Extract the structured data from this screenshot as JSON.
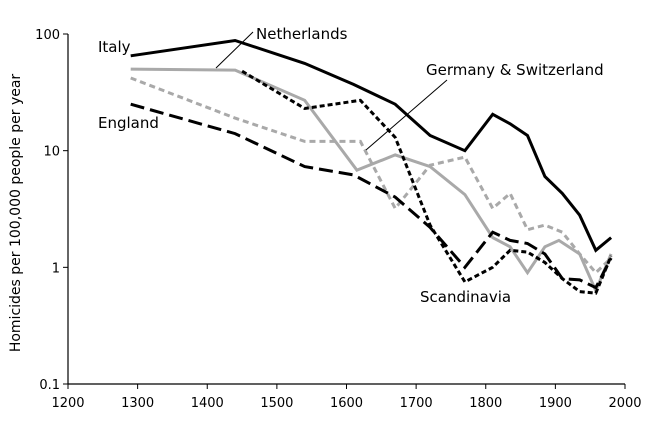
{
  "chart_data": {
    "type": "line",
    "title": "",
    "xlabel": "",
    "ylabel": "Homicides per 100,000 people per year",
    "y_scale": "log",
    "xlim": [
      1200,
      2000
    ],
    "ylim": [
      0.1,
      100
    ],
    "grid": false,
    "x_ticks": [
      "1200",
      "1300",
      "1400",
      "1500",
      "1600",
      "1700",
      "1800",
      "1900",
      "2000"
    ],
    "y_ticks": [
      "0.1",
      "1",
      "10",
      "100"
    ],
    "series": [
      {
        "name": "Italy",
        "color": "#000000",
        "style": "solid",
        "points": [
          [
            1290,
            65
          ],
          [
            1440,
            88
          ],
          [
            1540,
            56
          ],
          [
            1610,
            37
          ],
          [
            1670,
            25
          ],
          [
            1720,
            13.5
          ],
          [
            1770,
            10
          ],
          [
            1810,
            20.5
          ],
          [
            1835,
            17
          ],
          [
            1860,
            13.5
          ],
          [
            1885,
            6
          ],
          [
            1910,
            4.3
          ],
          [
            1935,
            2.8
          ],
          [
            1958,
            1.4
          ],
          [
            1980,
            1.8
          ]
        ]
      },
      {
        "name": "Netherlands",
        "color": "#a9a9a9",
        "style": "solid",
        "points": [
          [
            1290,
            50
          ],
          [
            1440,
            49
          ],
          [
            1540,
            27
          ],
          [
            1615,
            6.8
          ],
          [
            1670,
            9.2
          ],
          [
            1720,
            7.3
          ],
          [
            1770,
            4.2
          ],
          [
            1810,
            1.8
          ],
          [
            1835,
            1.5
          ],
          [
            1860,
            0.9
          ],
          [
            1885,
            1.5
          ],
          [
            1905,
            1.7
          ],
          [
            1935,
            1.3
          ],
          [
            1958,
            0.63
          ],
          [
            1980,
            1.3
          ]
        ]
      },
      {
        "name": "Germany & Switzerland",
        "color": "#a9a9a9",
        "style": "dashed",
        "points": [
          [
            1290,
            42
          ],
          [
            1440,
            19
          ],
          [
            1540,
            12
          ],
          [
            1620,
            12
          ],
          [
            1670,
            3.2
          ],
          [
            1720,
            7.5
          ],
          [
            1770,
            8.8
          ],
          [
            1810,
            3.2
          ],
          [
            1835,
            4.3
          ],
          [
            1860,
            2.1
          ],
          [
            1885,
            2.3
          ],
          [
            1910,
            2
          ],
          [
            1935,
            1.3
          ],
          [
            1958,
            0.9
          ],
          [
            1980,
            1.2
          ]
        ]
      },
      {
        "name": "England",
        "color": "#000000",
        "style": "long-dash",
        "points": [
          [
            1290,
            25
          ],
          [
            1440,
            14
          ],
          [
            1540,
            7.3
          ],
          [
            1610,
            6.2
          ],
          [
            1670,
            4
          ],
          [
            1720,
            2.2
          ],
          [
            1770,
            1.0
          ],
          [
            1810,
            2.0
          ],
          [
            1835,
            1.7
          ],
          [
            1860,
            1.6
          ],
          [
            1885,
            1.3
          ],
          [
            1910,
            0.8
          ],
          [
            1935,
            0.78
          ],
          [
            1958,
            0.67
          ],
          [
            1980,
            1.2
          ]
        ]
      },
      {
        "name": "Scandinavia",
        "color": "#000000",
        "style": "short-dash",
        "points": [
          [
            1450,
            48
          ],
          [
            1540,
            23
          ],
          [
            1620,
            27
          ],
          [
            1670,
            13
          ],
          [
            1720,
            2.3
          ],
          [
            1770,
            0.75
          ],
          [
            1810,
            1.0
          ],
          [
            1835,
            1.4
          ],
          [
            1860,
            1.35
          ],
          [
            1885,
            1.1
          ],
          [
            1910,
            0.8
          ],
          [
            1935,
            0.62
          ],
          [
            1958,
            0.6
          ],
          [
            1980,
            1.25
          ]
        ]
      }
    ],
    "annotations": [
      {
        "text": "Italy",
        "series": "Italy"
      },
      {
        "text": "Netherlands",
        "series": "Netherlands",
        "pointer": true
      },
      {
        "text": "Germany & Switzerland",
        "series": "Germany & Switzerland",
        "pointer": true
      },
      {
        "text": "England",
        "series": "England"
      },
      {
        "text": "Scandinavia",
        "series": "Scandinavia"
      }
    ]
  }
}
